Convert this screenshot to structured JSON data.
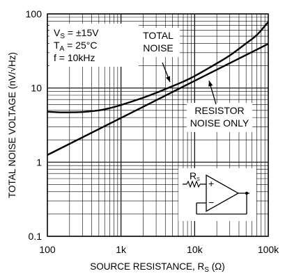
{
  "chart_data": {
    "type": "line",
    "x_scale": "log",
    "y_scale": "log",
    "xlim": [
      100,
      100000
    ],
    "ylim": [
      0.1,
      100
    ],
    "xlabel": "SOURCE RESISTANCE, R",
    "xlabel_sub": "S",
    "xlabel_unit": "(Ω)",
    "ylabel": "TOTAL NOISE VOLTAGE (nV/√Hz)",
    "grid": true,
    "x_ticks": [
      {
        "value": 100,
        "label": "100"
      },
      {
        "value": 1000,
        "label": "1k"
      },
      {
        "value": 10000,
        "label": "10k"
      },
      {
        "value": 100000,
        "label": "100k"
      }
    ],
    "y_ticks": [
      {
        "value": 0.1,
        "label": "0.1"
      },
      {
        "value": 1,
        "label": "1"
      },
      {
        "value": 10,
        "label": "10"
      },
      {
        "value": 100,
        "label": "100"
      }
    ],
    "conditions": [
      {
        "main": "V",
        "sub": "S",
        "rest": " = ±15V"
      },
      {
        "main": "T",
        "sub": "A",
        "rest": " = 25°C"
      },
      {
        "main": "f = 10kHz",
        "sub": "",
        "rest": ""
      }
    ],
    "series": [
      {
        "name": "TOTAL NOISE",
        "x": [
          100,
          150,
          200,
          300,
          500,
          700,
          1000,
          2000,
          3000,
          5000,
          7000,
          10000,
          20000,
          30000,
          50000,
          70000,
          100000
        ],
        "y": [
          4.8,
          4.7,
          4.7,
          4.75,
          5.0,
          5.35,
          5.9,
          7.4,
          8.6,
          10.6,
          12.2,
          14.5,
          21.5,
          27.5,
          40.0,
          52.0,
          78.0
        ]
      },
      {
        "name": "RESISTOR NOISE ONLY",
        "x": [
          100,
          1000,
          10000,
          100000
        ],
        "y": [
          1.25,
          3.95,
          12.5,
          39.5
        ]
      }
    ],
    "annotations": [
      {
        "lines": [
          "TOTAL",
          "NOISE"
        ],
        "series": "TOTAL NOISE"
      },
      {
        "lines": [
          "RESISTOR",
          "NOISE ONLY"
        ],
        "series": "RESISTOR NOISE ONLY"
      }
    ],
    "inset": {
      "resistor_label": "R",
      "resistor_sub": "S",
      "plus": "+",
      "minus": "−"
    }
  }
}
